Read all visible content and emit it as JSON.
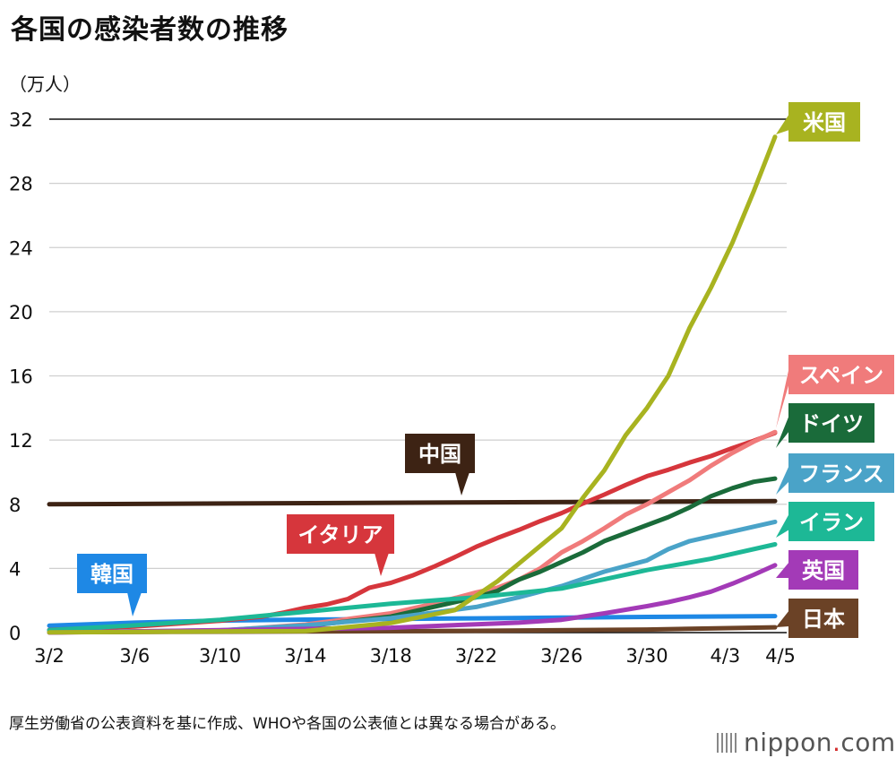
{
  "title": "各国の感染者数の推移",
  "unit_label": "（万人）",
  "footnote": "厚生労働省の公表資料を基に作成、WHOや各国の公表値とは異なる場合がある。",
  "brand": {
    "name": "nippon",
    "dot": ".",
    "tld": "com"
  },
  "chart_data": {
    "type": "line",
    "title": "各国の感染者数の推移",
    "ylabel": "（万人）",
    "xlabel": "",
    "ylim": [
      0,
      32
    ],
    "yticks": [
      0,
      4,
      8,
      12,
      16,
      20,
      24,
      28,
      32
    ],
    "xticks": [
      {
        "day": 0,
        "label": "3/2"
      },
      {
        "day": 4,
        "label": "3/6"
      },
      {
        "day": 8,
        "label": "3/10"
      },
      {
        "day": 12,
        "label": "3/14"
      },
      {
        "day": 16,
        "label": "3/18"
      },
      {
        "day": 20,
        "label": "3/22"
      },
      {
        "day": 24,
        "label": "3/26"
      },
      {
        "day": 28,
        "label": "3/30"
      },
      {
        "day": 32,
        "label": "4/3"
      },
      {
        "day": 34,
        "label": "4/5"
      }
    ],
    "x_range": [
      0,
      34
    ],
    "series": [
      {
        "name": "中国",
        "color": "#3d2314",
        "x": [
          0,
          34
        ],
        "values": [
          8.0,
          8.2
        ]
      },
      {
        "name": "韓国",
        "color": "#1e88e5",
        "x": [
          0,
          4,
          8,
          12,
          16,
          20,
          24,
          28,
          34
        ],
        "values": [
          0.43,
          0.62,
          0.75,
          0.81,
          0.85,
          0.89,
          0.93,
          0.98,
          1.03
        ]
      },
      {
        "name": "日本",
        "color": "#6b4226",
        "x": [
          0,
          10,
          20,
          28,
          34
        ],
        "values": [
          0.03,
          0.06,
          0.11,
          0.19,
          0.33
        ]
      },
      {
        "name": "イタリア",
        "color": "#d6363c",
        "x": [
          0,
          4,
          8,
          10,
          11,
          12,
          13,
          14,
          15,
          16,
          17,
          18,
          19,
          20,
          21,
          22,
          23,
          24,
          25,
          26,
          27,
          28,
          29,
          30,
          31,
          32,
          33,
          34
        ],
        "values": [
          0.17,
          0.38,
          0.74,
          1.0,
          1.25,
          1.55,
          1.76,
          2.1,
          2.8,
          3.1,
          3.55,
          4.1,
          4.7,
          5.35,
          5.9,
          6.4,
          6.95,
          7.45,
          8.05,
          8.6,
          9.2,
          9.75,
          10.15,
          10.6,
          11.0,
          11.5,
          11.95,
          12.45
        ]
      },
      {
        "name": "スペイン",
        "color": "#f07b7b",
        "x": [
          0,
          8,
          12,
          16,
          18,
          20,
          21,
          22,
          23,
          24,
          25,
          26,
          27,
          28,
          29,
          30,
          31,
          32,
          33,
          34
        ],
        "values": [
          0.01,
          0.12,
          0.5,
          1.2,
          1.8,
          2.5,
          2.8,
          3.3,
          4.0,
          5.0,
          5.7,
          6.5,
          7.35,
          8.0,
          8.75,
          9.5,
          10.4,
          11.2,
          11.9,
          12.5
        ]
      },
      {
        "name": "ドイツ",
        "color": "#1a6b3a",
        "x": [
          0,
          8,
          12,
          16,
          20,
          21,
          22,
          23,
          24,
          25,
          26,
          27,
          28,
          29,
          30,
          31,
          32,
          33,
          34
        ],
        "values": [
          0.02,
          0.1,
          0.4,
          1.0,
          2.2,
          2.6,
          3.3,
          3.8,
          4.4,
          5.0,
          5.7,
          6.2,
          6.7,
          7.2,
          7.8,
          8.5,
          9.0,
          9.4,
          9.6
        ]
      },
      {
        "name": "フランス",
        "color": "#4aa3c8",
        "x": [
          0,
          8,
          12,
          16,
          20,
          22,
          24,
          26,
          28,
          29,
          30,
          31,
          32,
          33,
          34
        ],
        "values": [
          0.01,
          0.14,
          0.45,
          0.9,
          1.6,
          2.2,
          2.9,
          3.8,
          4.5,
          5.2,
          5.7,
          6.0,
          6.3,
          6.6,
          6.9
        ]
      },
      {
        "name": "イラン",
        "color": "#1db896",
        "x": [
          0,
          4,
          8,
          12,
          16,
          20,
          24,
          28,
          31,
          34
        ],
        "values": [
          0.15,
          0.45,
          0.8,
          1.3,
          1.8,
          2.2,
          2.75,
          3.9,
          4.6,
          5.5
        ]
      },
      {
        "name": "英国",
        "color": "#a33ab7",
        "x": [
          0,
          16,
          20,
          22,
          24,
          26,
          28,
          29,
          30,
          31,
          32,
          33,
          34
        ],
        "values": [
          0.0,
          0.3,
          0.52,
          0.62,
          0.8,
          1.2,
          1.65,
          1.9,
          2.2,
          2.55,
          3.05,
          3.6,
          4.2
        ]
      },
      {
        "name": "米国",
        "color": "#a8b320",
        "x": [
          0,
          12,
          16,
          19,
          20,
          21,
          22,
          23,
          24,
          25,
          26,
          27,
          28,
          29,
          30,
          31,
          32,
          33,
          34
        ],
        "values": [
          0.01,
          0.1,
          0.6,
          1.4,
          2.3,
          3.2,
          4.3,
          5.4,
          6.5,
          8.4,
          10.1,
          12.3,
          14.0,
          16.0,
          19.0,
          21.5,
          24.3,
          27.5,
          30.9
        ]
      }
    ],
    "labels": [
      {
        "series": "中国",
        "text": "中国",
        "bg": "#3d2314"
      },
      {
        "series": "韓国",
        "text": "韓国",
        "bg": "#1e88e5"
      },
      {
        "series": "イタリア",
        "text": "イタリア",
        "bg": "#d6363c"
      },
      {
        "series": "米国",
        "text": "米国",
        "bg": "#a8b320"
      },
      {
        "series": "スペイン",
        "text": "スペイン",
        "bg": "#f07b7b"
      },
      {
        "series": "ドイツ",
        "text": "ドイツ",
        "bg": "#1a6b3a"
      },
      {
        "series": "フランス",
        "text": "フランス",
        "bg": "#4aa3c8"
      },
      {
        "series": "イラン",
        "text": "イラン",
        "bg": "#1db896"
      },
      {
        "series": "英国",
        "text": "英国",
        "bg": "#a33ab7"
      },
      {
        "series": "日本",
        "text": "日本",
        "bg": "#6b4226"
      }
    ]
  }
}
